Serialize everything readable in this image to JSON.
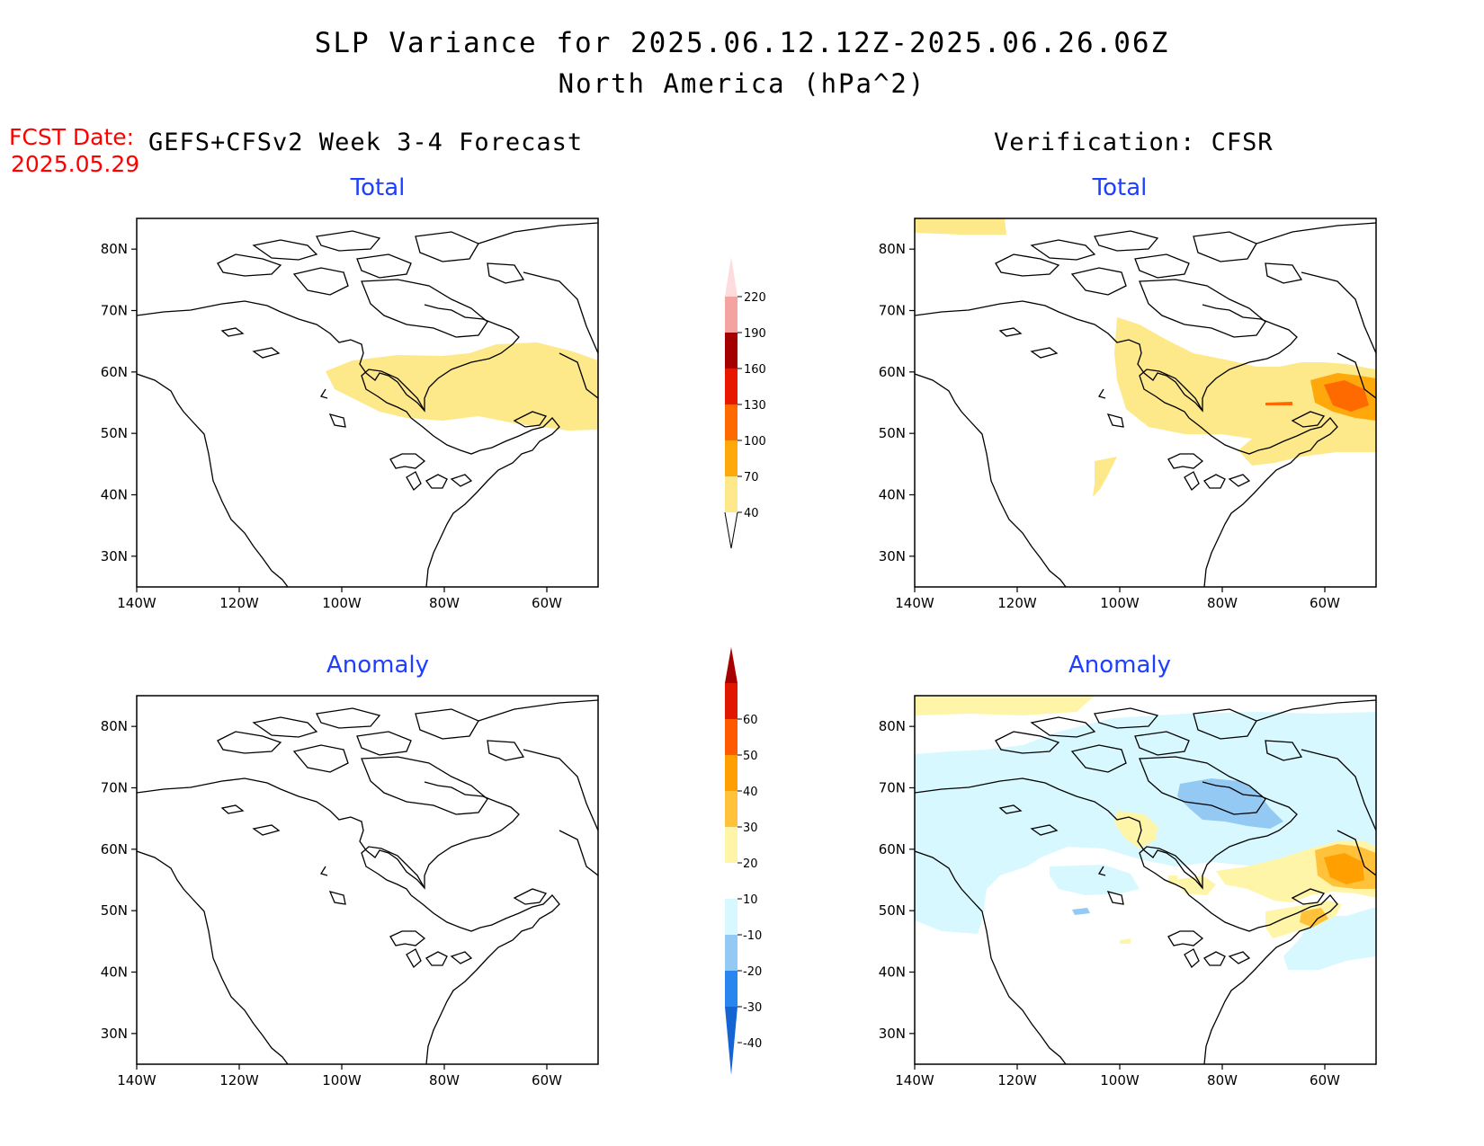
{
  "title": "SLP Variance for 2025.06.12.12Z-2025.06.26.06Z",
  "subtitle": "North America (hPa^2)",
  "fcst_label": "FCST Date:",
  "fcst_date": "2025.05.29",
  "left_header": "GEFS+CFSv2 Week 3-4 Forecast",
  "right_header": "Verification: CFSR",
  "panels": {
    "top_left": {
      "title": "Total"
    },
    "top_right": {
      "title": "Total"
    },
    "bottom_left": {
      "title": "Anomaly"
    },
    "bottom_right": {
      "title": "Anomaly"
    }
  },
  "axes": {
    "lat_labels": [
      "80N",
      "70N",
      "60N",
      "50N",
      "40N",
      "30N"
    ],
    "lon_labels": [
      "140W",
      "120W",
      "100W",
      "80W",
      "60W"
    ],
    "lat_range": [
      25,
      85
    ],
    "lon_range": [
      -140,
      -50
    ]
  },
  "colorbar_total": {
    "levels": [
      "40",
      "70",
      "100",
      "130",
      "160",
      "190",
      "220"
    ],
    "colors": [
      "#fde98a",
      "#ffa80c",
      "#ff6a00",
      "#e81800",
      "#a50000",
      "#f4a3a3",
      "#fcdcdc"
    ]
  },
  "colorbar_anomaly": {
    "levels": [
      "-40",
      "-30",
      "-20",
      "-10",
      "10",
      "20",
      "30",
      "40",
      "50",
      "60"
    ],
    "colors": [
      "#1464d4",
      "#2a86ef",
      "#94c9f4",
      "#d8f8ff",
      "#ffffff",
      "#fff5a8",
      "#ffc23a",
      "#ffa000",
      "#ff5a00",
      "#e01800",
      "#a80000"
    ]
  },
  "colors": {
    "title_blue": "#1f3fff",
    "fcst_red": "#ff0000"
  }
}
